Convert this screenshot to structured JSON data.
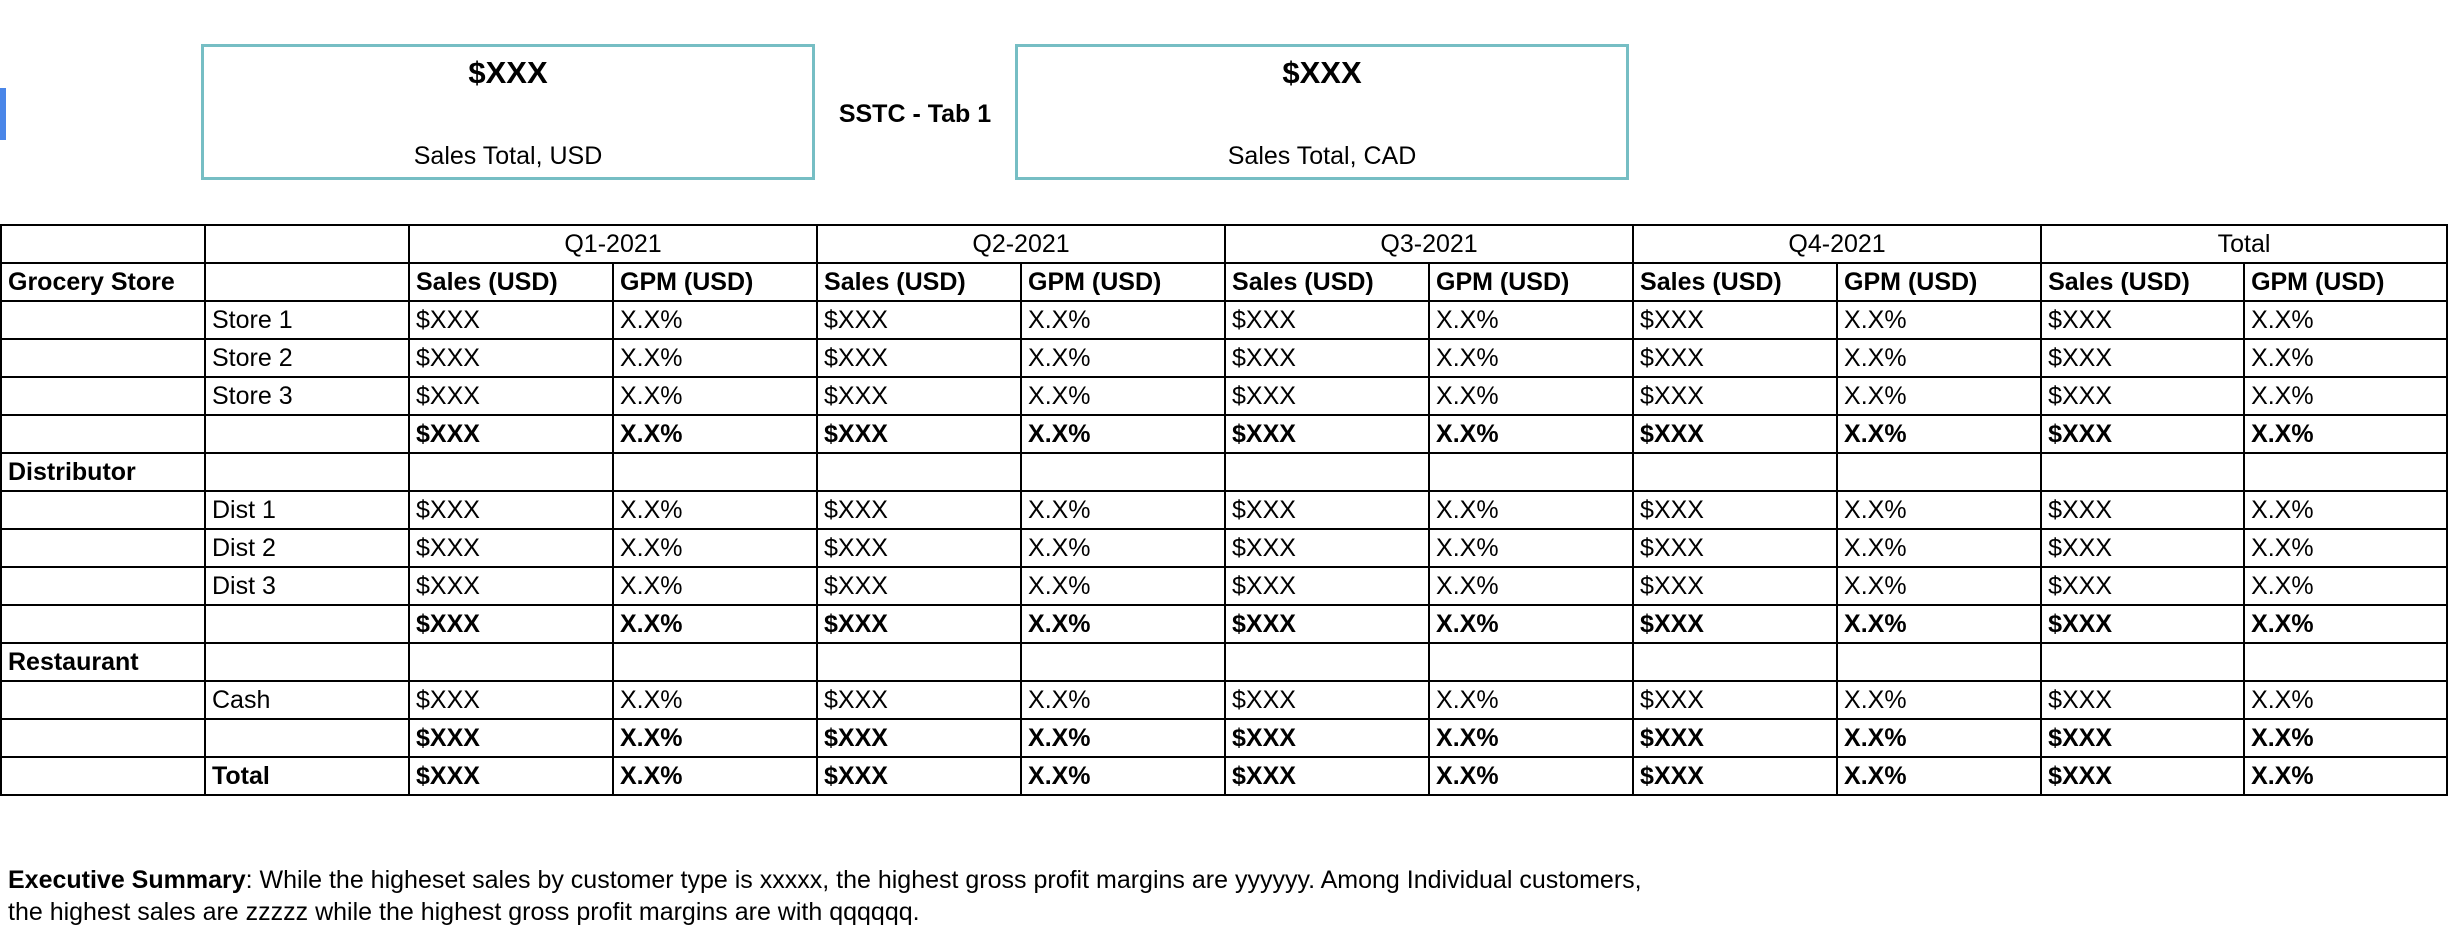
{
  "kpis": {
    "usd": {
      "value": "$XXX",
      "label": "Sales Total, USD"
    },
    "cad": {
      "value": "$XXX",
      "label": "Sales Total, CAD"
    }
  },
  "page_title": "SSTC - Tab 1",
  "table": {
    "periods": [
      "Q1-2021",
      "Q2-2021",
      "Q3-2021",
      "Q4-2021",
      "Total"
    ],
    "metric_headers": {
      "sales": "Sales (USD)",
      "gpm": "GPM (USD)"
    },
    "first_section_label": "Grocery Store",
    "sections": [
      {
        "name": "Grocery Store",
        "rows": [
          {
            "label": "Store 1",
            "bold": false,
            "cells": [
              "$XXX",
              "X.X%",
              "$XXX",
              "X.X%",
              "$XXX",
              "X.X%",
              "$XXX",
              "X.X%",
              "$XXX",
              "X.X%"
            ]
          },
          {
            "label": "Store 2",
            "bold": false,
            "cells": [
              "$XXX",
              "X.X%",
              "$XXX",
              "X.X%",
              "$XXX",
              "X.X%",
              "$XXX",
              "X.X%",
              "$XXX",
              "X.X%"
            ]
          },
          {
            "label": "Store 3",
            "bold": false,
            "cells": [
              "$XXX",
              "X.X%",
              "$XXX",
              "X.X%",
              "$XXX",
              "X.X%",
              "$XXX",
              "X.X%",
              "$XXX",
              "X.X%"
            ]
          },
          {
            "label": "",
            "bold": true,
            "cells": [
              "$XXX",
              "X.X%",
              "$XXX",
              "X.X%",
              "$XXX",
              "X.X%",
              "$XXX",
              "X.X%",
              "$XXX",
              "X.X%"
            ]
          }
        ]
      },
      {
        "name": "Distributor",
        "rows": [
          {
            "label": "Dist 1",
            "bold": false,
            "cells": [
              "$XXX",
              "X.X%",
              "$XXX",
              "X.X%",
              "$XXX",
              "X.X%",
              "$XXX",
              "X.X%",
              "$XXX",
              "X.X%"
            ]
          },
          {
            "label": "Dist 2",
            "bold": false,
            "cells": [
              "$XXX",
              "X.X%",
              "$XXX",
              "X.X%",
              "$XXX",
              "X.X%",
              "$XXX",
              "X.X%",
              "$XXX",
              "X.X%"
            ]
          },
          {
            "label": "Dist 3",
            "bold": false,
            "cells": [
              "$XXX",
              "X.X%",
              "$XXX",
              "X.X%",
              "$XXX",
              "X.X%",
              "$XXX",
              "X.X%",
              "$XXX",
              "X.X%"
            ]
          },
          {
            "label": "",
            "bold": true,
            "cells": [
              "$XXX",
              "X.X%",
              "$XXX",
              "X.X%",
              "$XXX",
              "X.X%",
              "$XXX",
              "X.X%",
              "$XXX",
              "X.X%"
            ]
          }
        ]
      },
      {
        "name": "Restaurant",
        "rows": [
          {
            "label": "Cash",
            "bold": false,
            "cells": [
              "$XXX",
              "X.X%",
              "$XXX",
              "X.X%",
              "$XXX",
              "X.X%",
              "$XXX",
              "X.X%",
              "$XXX",
              "X.X%"
            ]
          },
          {
            "label": "",
            "bold": true,
            "cells": [
              "$XXX",
              "X.X%",
              "$XXX",
              "X.X%",
              "$XXX",
              "X.X%",
              "$XXX",
              "X.X%",
              "$XXX",
              "X.X%"
            ]
          }
        ]
      }
    ],
    "total_row": {
      "label": "Total",
      "cells": [
        "$XXX",
        "X.X%",
        "$XXX",
        "X.X%",
        "$XXX",
        "X.X%",
        "$XXX",
        "X.X%",
        "$XXX",
        "X.X%"
      ]
    }
  },
  "summary": {
    "label": "Executive Summary",
    "text": ": While the higheset sales by customer type is xxxxx, the highest gross profit margins are yyyyyy. Among Individual customers, the highest sales are zzzzz while the highest gross profit margins are with qqqqqq."
  },
  "colors": {
    "card_border": "#76bec4",
    "grid_border": "#000000",
    "left_marker": "#4a86e8"
  }
}
